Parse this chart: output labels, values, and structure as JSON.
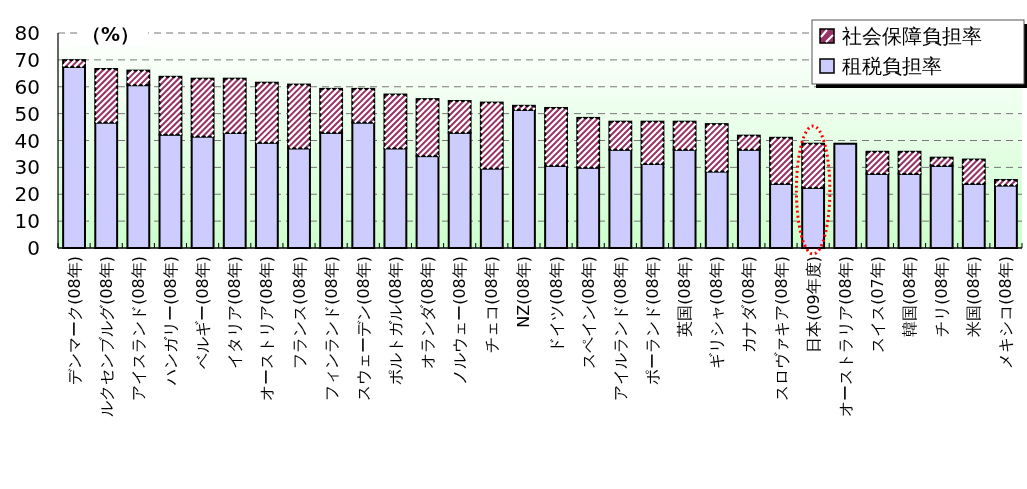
{
  "chart_data": {
    "type": "bar",
    "stacked": true,
    "categories": [
      "デンマーク(08年)",
      "ルクセンブルグ(08年)",
      "アイスランド(08年)",
      "ハンガリー(08年)",
      "ベルギー(08年)",
      "イタリア(08年)",
      "オーストリア(08年)",
      "フランス(08年)",
      "フィンランド(08年)",
      "スウェーデン(08年)",
      "ポルトガル(08年)",
      "オランダ(08年)",
      "ノルウェー(08年)",
      "チェコ(08年)",
      "NZ(08年)",
      "ドイツ(08年)",
      "スペイン(08年)",
      "アイルランド(08年)",
      "ポーランド(08年)",
      "英国(08年)",
      "ギリシャ(08年)",
      "カナダ(08年)",
      "スロヴァキア(08年)",
      "日本(09年度)",
      "オーストラリア(08年)",
      "スイス(07年)",
      "韓国(08年)",
      "チリ(08年)",
      "米国(08年)",
      "メキシコ(08年)"
    ],
    "series": [
      {
        "name": "租税負担率",
        "color": "#ccccff",
        "values": [
          67.4,
          46.7,
          60.6,
          42.2,
          41.5,
          42.8,
          39.2,
          37.1,
          42.9,
          46.7,
          37.1,
          34.2,
          42.9,
          29.6,
          51.4,
          30.6,
          29.9,
          36.6,
          31.3,
          36.6,
          28.5,
          36.6,
          23.9,
          22.4,
          38.8,
          27.6,
          27.6,
          30.6,
          23.9,
          23.3
        ]
      },
      {
        "name": "社会保障負担率",
        "color": "#993366",
        "values": [
          2.5,
          19.9,
          5.4,
          21.5,
          21.5,
          20.2,
          22.3,
          23.7,
          16.3,
          12.5,
          20.0,
          21.2,
          11.8,
          24.5,
          1.5,
          21.5,
          18.5,
          10.4,
          15.7,
          10.4,
          17.6,
          5.2,
          17.1,
          16.4,
          0,
          8.2,
          8.2,
          3.0,
          9.0,
          2.0
        ]
      }
    ],
    "ylim": [
      0,
      80
    ],
    "yticks": [
      0,
      10,
      20,
      30,
      40,
      50,
      60,
      70,
      80
    ],
    "grid": "y",
    "legend": "top right",
    "ylabel": "（%）"
  }
}
